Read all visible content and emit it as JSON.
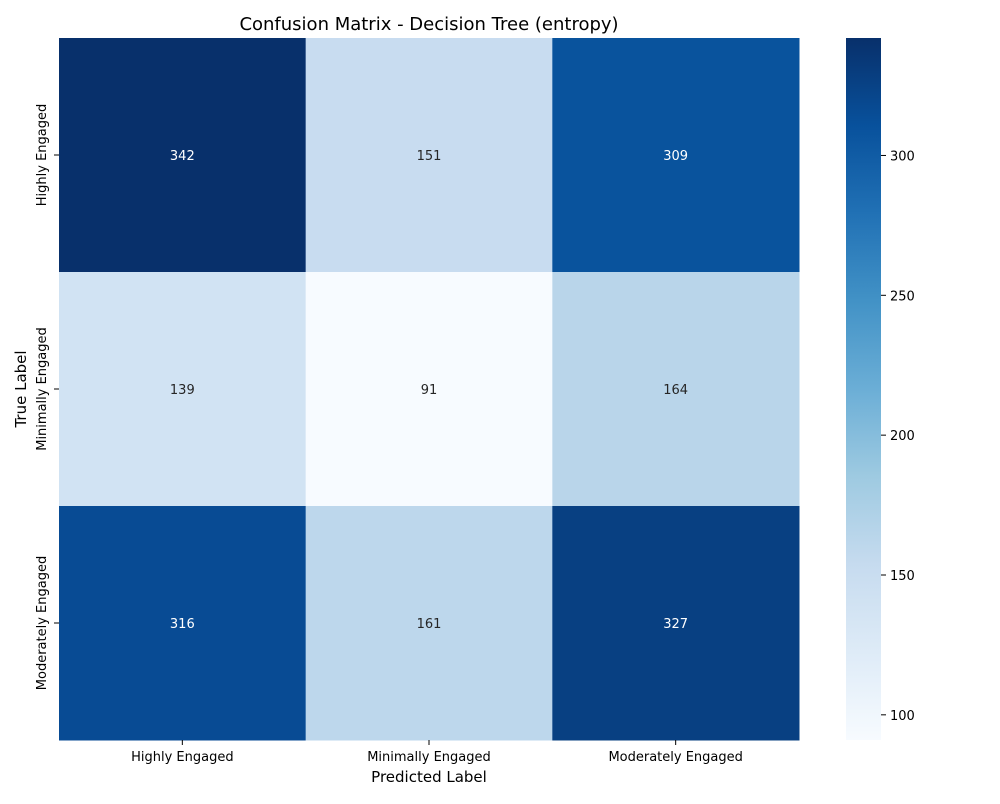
{
  "chart_data": {
    "type": "heatmap",
    "title": "Confusion Matrix - Decision Tree (entropy)",
    "xlabel": "Predicted Label",
    "ylabel": "True Label",
    "x_categories": [
      "Highly Engaged",
      "Minimally Engaged",
      "Moderately Engaged"
    ],
    "y_categories": [
      "Highly Engaged",
      "Minimally Engaged",
      "Moderately Engaged"
    ],
    "values": [
      [
        342,
        151,
        309
      ],
      [
        139,
        91,
        164
      ],
      [
        316,
        161,
        327
      ]
    ],
    "colormap": "Blues",
    "color_range": [
      91,
      342
    ],
    "colorbar_ticks": [
      100,
      150,
      200,
      250,
      300
    ],
    "colorbar_tick_labels": [
      "100",
      "150",
      "200",
      "250",
      "300"
    ]
  }
}
